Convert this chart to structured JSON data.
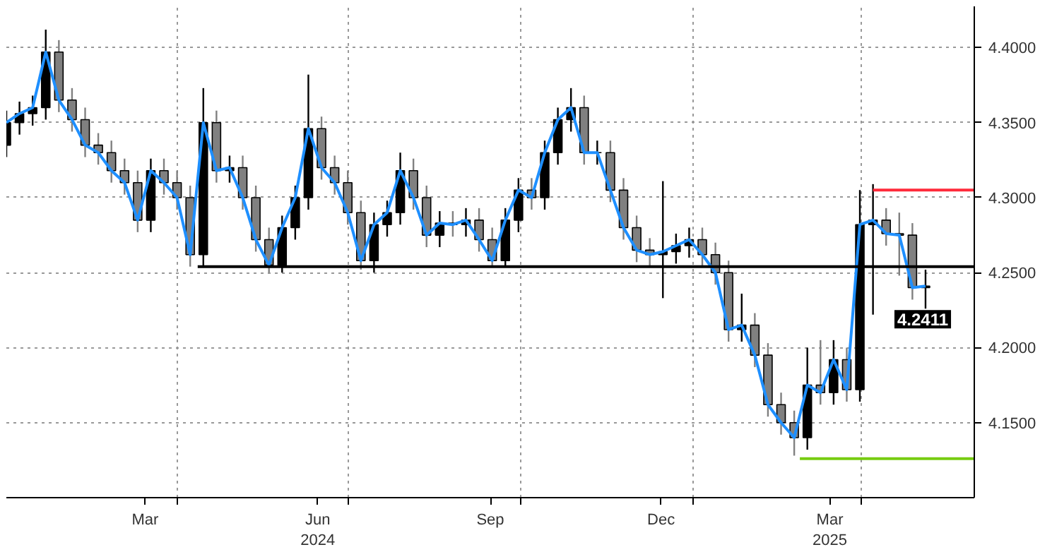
{
  "chart_data": {
    "type": "candlestick",
    "x": [
      "2024-01-01",
      "2024-01-08",
      "2024-01-15",
      "2024-01-22",
      "2024-01-29",
      "2024-02-05",
      "2024-02-12",
      "2024-02-19",
      "2024-02-26",
      "2024-03-04",
      "2024-03-11",
      "2024-03-18",
      "2024-03-25",
      "2024-04-01",
      "2024-04-08",
      "2024-04-15",
      "2024-04-22",
      "2024-04-29",
      "2024-05-06",
      "2024-05-13",
      "2024-05-20",
      "2024-05-27",
      "2024-06-03",
      "2024-06-10",
      "2024-06-17",
      "2024-06-24",
      "2024-07-01",
      "2024-07-08",
      "2024-07-15",
      "2024-07-22",
      "2024-07-29",
      "2024-08-05",
      "2024-08-12",
      "2024-08-19",
      "2024-08-26",
      "2024-09-02",
      "2024-09-09",
      "2024-09-16",
      "2024-09-23",
      "2024-09-30",
      "2024-10-07",
      "2024-10-14",
      "2024-10-21",
      "2024-10-28",
      "2024-11-04",
      "2024-11-11",
      "2024-11-18",
      "2024-11-25",
      "2024-12-02",
      "2024-12-09",
      "2024-12-16",
      "2024-12-23",
      "2024-12-30",
      "2025-01-06",
      "2025-01-13",
      "2025-01-20",
      "2025-01-27",
      "2025-02-03",
      "2025-02-10",
      "2025-02-17",
      "2025-02-24",
      "2025-03-03",
      "2025-03-10",
      "2025-03-17",
      "2025-03-24",
      "2025-03-31",
      "2025-04-07",
      "2025-04-14",
      "2025-04-21",
      "2025-04-28",
      "2025-05-05"
    ],
    "ohlc": [
      [
        4.335,
        4.358,
        4.327,
        4.35
      ],
      [
        4.35,
        4.364,
        4.342,
        4.356
      ],
      [
        4.356,
        4.368,
        4.348,
        4.36
      ],
      [
        4.36,
        4.412,
        4.352,
        4.397
      ],
      [
        4.397,
        4.405,
        4.357,
        4.365
      ],
      [
        4.365,
        4.373,
        4.344,
        4.352
      ],
      [
        4.352,
        4.36,
        4.327,
        4.335
      ],
      [
        4.335,
        4.343,
        4.322,
        4.33
      ],
      [
        4.33,
        4.338,
        4.31,
        4.318
      ],
      [
        4.318,
        4.326,
        4.302,
        4.31
      ],
      [
        4.31,
        4.318,
        4.277,
        4.285
      ],
      [
        4.285,
        4.326,
        4.277,
        4.318
      ],
      [
        4.318,
        4.326,
        4.302,
        4.31
      ],
      [
        4.31,
        4.318,
        4.292,
        4.3
      ],
      [
        4.3,
        4.308,
        4.254,
        4.262
      ],
      [
        4.262,
        4.373,
        4.254,
        4.35
      ],
      [
        4.35,
        4.358,
        4.31,
        4.318
      ],
      [
        4.318,
        4.328,
        4.31,
        4.32
      ],
      [
        4.32,
        4.328,
        4.292,
        4.3
      ],
      [
        4.3,
        4.308,
        4.264,
        4.272
      ],
      [
        4.272,
        4.28,
        4.25,
        4.255
      ],
      [
        4.255,
        4.288,
        4.25,
        4.28
      ],
      [
        4.28,
        4.308,
        4.272,
        4.3
      ],
      [
        4.3,
        4.382,
        4.292,
        4.346
      ],
      [
        4.346,
        4.354,
        4.312,
        4.32
      ],
      [
        4.32,
        4.328,
        4.302,
        4.31
      ],
      [
        4.31,
        4.318,
        4.282,
        4.29
      ],
      [
        4.29,
        4.298,
        4.252,
        4.258
      ],
      [
        4.258,
        4.29,
        4.25,
        4.282
      ],
      [
        4.282,
        4.298,
        4.274,
        4.29
      ],
      [
        4.29,
        4.33,
        4.282,
        4.318
      ],
      [
        4.318,
        4.326,
        4.292,
        4.3
      ],
      [
        4.3,
        4.308,
        4.267,
        4.275
      ],
      [
        4.275,
        4.291,
        4.267,
        4.283
      ],
      [
        4.283,
        4.291,
        4.274,
        4.282
      ],
      [
        4.282,
        4.293,
        4.274,
        4.285
      ],
      [
        4.285,
        4.293,
        4.264,
        4.272
      ],
      [
        4.272,
        4.28,
        4.254,
        4.258
      ],
      [
        4.258,
        4.293,
        4.254,
        4.285
      ],
      [
        4.285,
        4.313,
        4.277,
        4.305
      ],
      [
        4.305,
        4.313,
        4.292,
        4.3
      ],
      [
        4.3,
        4.338,
        4.292,
        4.33
      ],
      [
        4.33,
        4.36,
        4.322,
        4.352
      ],
      [
        4.352,
        4.373,
        4.344,
        4.36
      ],
      [
        4.36,
        4.368,
        4.322,
        4.33
      ],
      [
        4.33,
        4.338,
        4.322,
        4.33
      ],
      [
        4.33,
        4.338,
        4.297,
        4.305
      ],
      [
        4.305,
        4.313,
        4.272,
        4.28
      ],
      [
        4.28,
        4.288,
        4.257,
        4.265
      ],
      [
        4.265,
        4.273,
        4.254,
        4.262
      ],
      [
        4.262,
        4.311,
        4.233,
        4.264
      ],
      [
        4.264,
        4.276,
        4.256,
        4.268
      ],
      [
        4.268,
        4.28,
        4.26,
        4.272
      ],
      [
        4.272,
        4.28,
        4.254,
        4.262
      ],
      [
        4.262,
        4.27,
        4.242,
        4.25
      ],
      [
        4.25,
        4.258,
        4.204,
        4.212
      ],
      [
        4.212,
        4.236,
        4.204,
        4.215
      ],
      [
        4.215,
        4.223,
        4.187,
        4.195
      ],
      [
        4.195,
        4.203,
        4.154,
        4.162
      ],
      [
        4.162,
        4.17,
        4.142,
        4.15
      ],
      [
        4.15,
        4.158,
        4.128,
        4.14
      ],
      [
        4.14,
        4.2,
        4.132,
        4.175
      ],
      [
        4.175,
        4.205,
        4.162,
        4.17
      ],
      [
        4.17,
        4.205,
        4.162,
        4.192
      ],
      [
        4.192,
        4.2,
        4.164,
        4.172
      ],
      [
        4.172,
        4.305,
        4.164,
        4.282
      ],
      [
        4.282,
        4.309,
        4.222,
        4.285
      ],
      [
        4.285,
        4.293,
        4.268,
        4.276
      ],
      [
        4.276,
        4.29,
        4.248,
        4.275
      ],
      [
        4.275,
        4.283,
        4.232,
        4.24
      ],
      [
        4.24,
        4.252,
        4.226,
        4.241
      ]
    ],
    "colors": [
      "#000000",
      "#000000",
      "#000000",
      "#000000",
      "#808080",
      "#808080",
      "#808080",
      "#808080",
      "#808080",
      "#808080",
      "#808080",
      "#000000",
      "#808080",
      "#808080",
      "#808080",
      "#000000",
      "#808080",
      "#000000",
      "#808080",
      "#808080",
      "#808080",
      "#000000",
      "#000000",
      "#000000",
      "#808080",
      "#808080",
      "#808080",
      "#808080",
      "#000000",
      "#000000",
      "#000000",
      "#808080",
      "#808080",
      "#000000",
      "#808080",
      "#000000",
      "#808080",
      "#808080",
      "#000000",
      "#000000",
      "#808080",
      "#000000",
      "#000000",
      "#000000",
      "#808080",
      "#000000",
      "#808080",
      "#808080",
      "#808080",
      "#808080",
      "#000000",
      "#000000",
      "#000000",
      "#808080",
      "#808080",
      "#808080",
      "#000000",
      "#808080",
      "#808080",
      "#808080",
      "#808080",
      "#000000",
      "#808080",
      "#000000",
      "#808080",
      "#000000",
      "#000000",
      "#808080",
      "#808080",
      "#808080",
      "#000000"
    ],
    "series": [
      {
        "type": "line",
        "color": "#1e8fff",
        "values": [
          4.35,
          4.356,
          4.36,
          4.397,
          4.365,
          4.352,
          4.335,
          4.33,
          4.318,
          4.31,
          4.285,
          4.318,
          4.31,
          4.3,
          4.262,
          4.35,
          4.318,
          4.32,
          4.3,
          4.272,
          4.255,
          4.28,
          4.3,
          4.346,
          4.32,
          4.31,
          4.29,
          4.258,
          4.282,
          4.29,
          4.318,
          4.3,
          4.275,
          4.283,
          4.282,
          4.285,
          4.272,
          4.258,
          4.285,
          4.305,
          4.3,
          4.33,
          4.352,
          4.36,
          4.33,
          4.33,
          4.305,
          4.28,
          4.265,
          4.262,
          4.264,
          4.268,
          4.272,
          4.262,
          4.25,
          4.212,
          4.215,
          4.195,
          4.162,
          4.15,
          4.14,
          4.175,
          4.17,
          4.192,
          4.172,
          4.282,
          4.285,
          4.276,
          4.275,
          4.24,
          4.241
        ]
      },
      {
        "type": "line",
        "color": "#000000",
        "x": [
          "2024-04-12",
          "2025-05-31"
        ],
        "values": [
          4.254,
          4.254
        ]
      },
      {
        "type": "line",
        "color": "#ff2a3a",
        "x": [
          "2025-04-07",
          "2025-05-31"
        ],
        "values": [
          4.305,
          4.305
        ]
      },
      {
        "type": "line",
        "color": "#77cc11",
        "x": [
          "2025-02-27",
          "2025-05-31"
        ],
        "values": [
          4.126,
          4.126
        ]
      }
    ],
    "xlim": [
      "2024-01-01",
      "2025-05-31"
    ],
    "xticks": [
      {
        "value": "2024-04-01",
        "label": null
      },
      {
        "value": "2024-07-01",
        "label": null
      },
      {
        "value": "2024-10-01",
        "label": null
      },
      {
        "value": "2025-01-01",
        "label": null
      },
      {
        "value": "2025-04-01",
        "label": null
      },
      {
        "value": "2024-03-15",
        "label": "Mar"
      },
      {
        "value": "2024-06-15",
        "label": "Jun\n2024"
      },
      {
        "value": "2024-09-15",
        "label": "Sep"
      },
      {
        "value": "2024-12-15",
        "label": "Dec"
      },
      {
        "value": "2025-03-15",
        "label": "Mar\n2025"
      }
    ],
    "ylim": [
      4.1,
      4.4275
    ],
    "yticks": [
      {
        "value": 4.15,
        "label": "4.1500"
      },
      {
        "value": 4.2,
        "label": "4.2000"
      },
      {
        "value": 4.25,
        "label": "4.2500"
      },
      {
        "value": 4.3,
        "label": "4.3000"
      },
      {
        "value": 4.35,
        "label": "4.3500"
      },
      {
        "value": 4.4,
        "label": "4.4000"
      }
    ],
    "grid": true,
    "annotations": [
      {
        "text": "4.2411",
        "x": "2025-05-05",
        "y": 4.241
      }
    ]
  }
}
